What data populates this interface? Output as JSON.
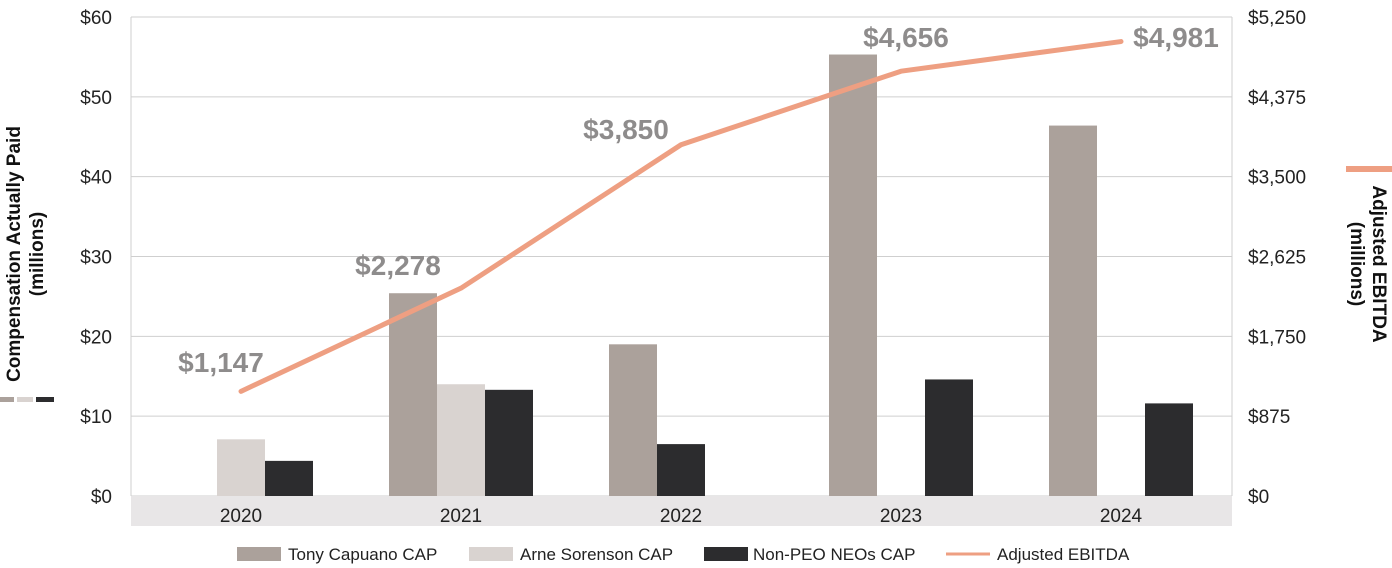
{
  "chart_data": {
    "type": "bar",
    "categories": [
      "2020",
      "2021",
      "2022",
      "2023",
      "2024"
    ],
    "series": [
      {
        "name": "Tony Capuano CAP",
        "values": [
          null,
          25.4,
          19.0,
          55.3,
          46.4
        ],
        "color": "#aba19b"
      },
      {
        "name": "Arne Sorenson CAP",
        "values": [
          7.1,
          14.0,
          null,
          null,
          null
        ],
        "color": "#d9d3d0"
      },
      {
        "name": "Non-PEO NEOs CAP",
        "values": [
          4.4,
          13.3,
          6.5,
          14.6,
          11.6
        ],
        "color": "#2c2c2e"
      }
    ],
    "line_series": {
      "name": "Adjusted EBITDA",
      "values": [
        1147,
        2278,
        3850,
        4656,
        4981
      ],
      "labels": [
        "$1,147",
        "$2,278",
        "$3,850",
        "$4,656",
        "$4,981"
      ],
      "color": "#ee9f82"
    },
    "left_axis": {
      "title_line1": "Compensation Actually Paid",
      "title_line2": "(millions)",
      "ylim": [
        0,
        60
      ],
      "ticks": [
        0,
        10,
        20,
        30,
        40,
        50,
        60
      ],
      "tick_labels": [
        "$0",
        "$10",
        "$20",
        "$30",
        "$40",
        "$50",
        "$60"
      ]
    },
    "right_axis": {
      "title_line1": "Adjusted EBITDA",
      "title_line2": "(millions)",
      "ylim": [
        0,
        5250
      ],
      "ticks": [
        0,
        875,
        1750,
        2625,
        3500,
        4375,
        5250
      ],
      "tick_labels": [
        "$0",
        "$875",
        "$1,750",
        "$2,625",
        "$3,500",
        "$4,375",
        "$5,250"
      ]
    },
    "legend": {
      "position": "bottom",
      "entries": [
        "Tony Capuano CAP",
        "Arne Sorenson CAP",
        "Non-PEO NEOs CAP",
        "Adjusted EBITDA"
      ]
    },
    "grid": true,
    "xaxis_band_color": "#e8e6e7"
  }
}
